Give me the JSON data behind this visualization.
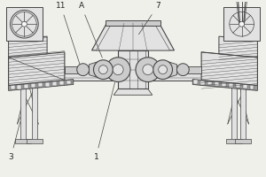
{
  "bg_color": "#f0f0eb",
  "line_color": "#444444",
  "fill_light": "#cccccc",
  "fill_lighter": "#e2e2e2",
  "fill_med": "#bbbbbb",
  "fill_dark": "#999999",
  "fill_white": "#f8f8f8",
  "label_color": "#222222",
  "figsize": [
    3.0,
    2.0
  ],
  "dpi": 100
}
